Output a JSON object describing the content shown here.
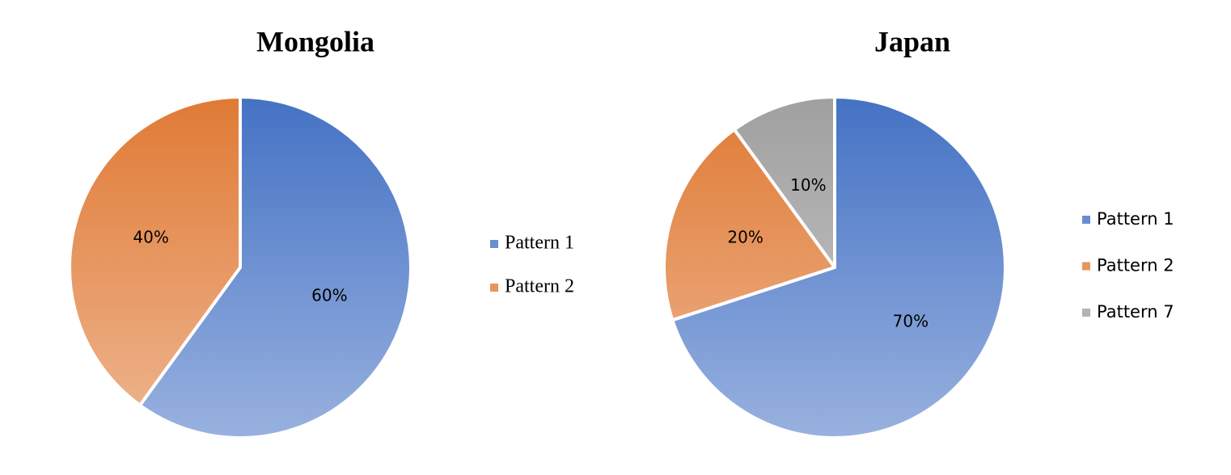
{
  "chart_data": [
    {
      "type": "pie",
      "title": "Mongolia",
      "categories": [
        "Pattern 1",
        "Pattern 2"
      ],
      "values": [
        60,
        40
      ],
      "value_labels": [
        "60%",
        "40%"
      ],
      "colors": [
        "#4472c4",
        "#e07a35"
      ],
      "legend": "right"
    },
    {
      "type": "pie",
      "title": "Japan",
      "categories": [
        "Pattern 1",
        "Pattern 2",
        "Pattern 7"
      ],
      "values": [
        70,
        20,
        10
      ],
      "value_labels": [
        "70%",
        "20%",
        "10%"
      ],
      "colors": [
        "#4472c4",
        "#e07a35",
        "#a0a0a0"
      ],
      "legend": "right"
    }
  ]
}
